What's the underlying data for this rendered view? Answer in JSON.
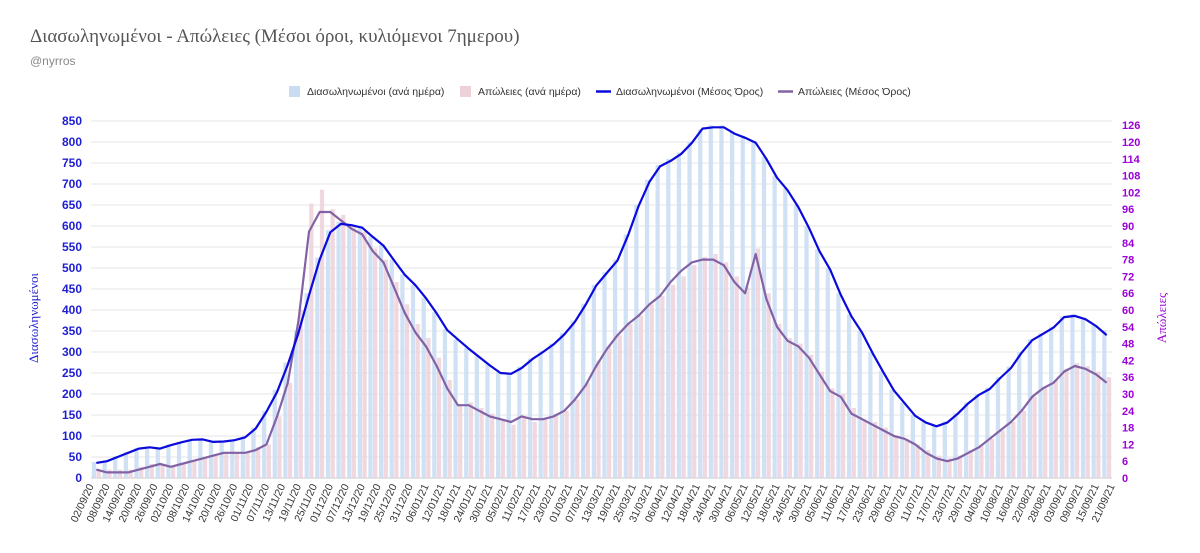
{
  "header": {
    "title": "Διασωληνωμένοι - Απώλειες (Μέσοι όροι, κυλιόμενοι 7ημερου)",
    "subtitle": "@nyrros"
  },
  "chart_data": {
    "type": "bar",
    "title": "Διασωληνωμένοι - Απώλειες (Μέσοι όροι, κυλιόμενοι 7ημερου)",
    "legend_position": "top-center",
    "grid": true,
    "colors": {
      "intubated_daily": "#c9dcf3",
      "deaths_daily": "#ecd1d9",
      "intubated_avg": "#0a0adc",
      "deaths_avg": "#8262a4",
      "left_axis": "#1e1ed2",
      "right_axis": "#9b00d7"
    },
    "y_left": {
      "label": "Διασωληνωμένοι",
      "range": [
        0,
        850
      ],
      "ticks": [
        "0",
        "50",
        "100",
        "150",
        "200",
        "250",
        "300",
        "350",
        "400",
        "450",
        "500",
        "550",
        "600",
        "650",
        "700",
        "750",
        "800",
        "850"
      ]
    },
    "y_right": {
      "label": "Απώλειες",
      "range": [
        0,
        127.5
      ],
      "ticks": [
        "0",
        "6",
        "12",
        "18",
        "24",
        "30",
        "36",
        "42",
        "48",
        "54",
        "60",
        "66",
        "72",
        "78",
        "84",
        "90",
        "96",
        "102",
        "108",
        "114",
        "120",
        "126"
      ]
    },
    "x_tick_labels": [
      "02/09/20",
      "08/09/20",
      "14/09/20",
      "20/09/20",
      "26/09/20",
      "02/10/20",
      "08/10/20",
      "14/10/20",
      "20/10/20",
      "26/10/20",
      "01/11/20",
      "07/11/20",
      "13/11/20",
      "19/11/20",
      "25/11/20",
      "01/12/20",
      "07/12/20",
      "13/12/20",
      "19/12/20",
      "25/12/20",
      "31/12/20",
      "06/01/21",
      "12/01/21",
      "18/01/21",
      "24/01/21",
      "30/01/21",
      "05/02/21",
      "11/02/21",
      "17/02/21",
      "23/02/21",
      "01/03/21",
      "07/03/21",
      "13/03/21",
      "19/03/21",
      "25/03/21",
      "31/03/21",
      "06/04/21",
      "12/04/21",
      "18/04/21",
      "24/04/21",
      "30/04/21",
      "06/05/21",
      "12/05/21",
      "18/05/21",
      "24/05/21",
      "30/05/21",
      "05/06/21",
      "11/06/21",
      "17/06/21",
      "23/06/21",
      "29/06/21",
      "05/07/21",
      "11/07/21",
      "17/07/21",
      "23/07/21",
      "29/07/21",
      "04/08/21",
      "10/08/21",
      "16/08/21",
      "22/08/21",
      "28/08/21",
      "03/09/21",
      "09/09/21",
      "15/09/21",
      "21/09/21"
    ],
    "series": [
      {
        "name": "Διασωληνωμένοι (ανά ημέρα)",
        "axis": "left",
        "kind": "bar",
        "values": [
          38,
          42,
          52,
          62,
          72,
          75,
          70,
          80,
          86,
          92,
          93,
          86,
          88,
          90,
          98,
          120,
          160,
          210,
          275,
          350,
          440,
          525,
          590,
          610,
          600,
          598,
          575,
          555,
          520,
          485,
          460,
          430,
          395,
          355,
          330,
          310,
          290,
          270,
          252,
          250,
          265,
          285,
          302,
          320,
          345,
          375,
          415,
          460,
          490,
          520,
          580,
          650,
          710,
          745,
          760,
          775,
          800,
          830,
          840,
          840,
          825,
          815,
          800,
          765,
          720,
          690,
          650,
          600,
          545,
          500,
          440,
          390,
          350,
          300,
          255,
          210,
          180,
          150,
          135,
          125,
          135,
          155,
          180,
          200,
          215,
          240,
          265,
          300,
          330,
          345,
          360,
          385,
          390,
          380,
          365,
          352
        ]
      },
      {
        "name": "Απώλειες (ανά ημέρα)",
        "axis": "right",
        "kind": "bar",
        "values": [
          3,
          3,
          3,
          3,
          4,
          5,
          5,
          4,
          5,
          6,
          7,
          8,
          9,
          9,
          9,
          11,
          12,
          22,
          34,
          60,
          98,
          103,
          96,
          94,
          90,
          88,
          82,
          78,
          70,
          62,
          55,
          50,
          43,
          35,
          26,
          27,
          25,
          23,
          21,
          19,
          22,
          20,
          21,
          23,
          24,
          28,
          34,
          42,
          47,
          51,
          55,
          58,
          62,
          65,
          69,
          72,
          76,
          79,
          80,
          77,
          72,
          68,
          82,
          66,
          55,
          50,
          48,
          44,
          38,
          32,
          30,
          25,
          21,
          20,
          18,
          15,
          14,
          12,
          10,
          8,
          7,
          8,
          10,
          12,
          14,
          17,
          20,
          24,
          29,
          32,
          35,
          39,
          41,
          40,
          38,
          36
        ]
      },
      {
        "name": "Διασωληνωμένοι (Μέσος Όρος)",
        "axis": "left",
        "kind": "line",
        "values": [
          36,
          40,
          50,
          60,
          70,
          73,
          70,
          78,
          85,
          91,
          92,
          86,
          87,
          90,
          97,
          118,
          158,
          205,
          270,
          345,
          435,
          520,
          585,
          605,
          602,
          596,
          574,
          553,
          518,
          484,
          459,
          428,
          392,
          352,
          330,
          308,
          288,
          268,
          250,
          248,
          262,
          283,
          300,
          318,
          342,
          372,
          412,
          458,
          488,
          518,
          578,
          648,
          705,
          742,
          755,
          772,
          798,
          832,
          835,
          835,
          820,
          810,
          798,
          760,
          715,
          685,
          645,
          596,
          540,
          496,
          436,
          385,
          346,
          297,
          252,
          208,
          178,
          148,
          132,
          123,
          132,
          153,
          178,
          198,
          212,
          238,
          262,
          298,
          328,
          343,
          358,
          383,
          386,
          378,
          362,
          340
        ]
      },
      {
        "name": "Απώλειες (Μέσος Όρος)",
        "axis": "right",
        "kind": "line",
        "values": [
          3,
          2,
          2,
          2,
          3,
          4,
          5,
          4,
          5,
          6,
          7,
          8,
          9,
          9,
          9,
          10,
          12,
          22,
          34,
          56,
          88,
          95,
          95,
          92,
          89,
          87,
          81,
          77,
          68,
          59,
          52,
          47,
          40,
          32,
          26,
          26,
          24,
          22,
          21,
          20,
          22,
          21,
          21,
          22,
          24,
          28,
          33,
          40,
          46,
          51,
          55,
          58,
          62,
          65,
          70,
          74,
          77,
          78,
          78,
          76,
          70,
          66,
          80,
          64,
          54,
          49,
          47,
          43,
          37,
          31,
          29,
          23,
          21,
          19,
          17,
          15,
          14,
          12,
          9,
          7,
          6,
          7,
          9,
          11,
          14,
          17,
          20,
          24,
          29,
          32,
          34,
          38,
          40,
          39,
          37,
          34
        ]
      }
    ]
  }
}
